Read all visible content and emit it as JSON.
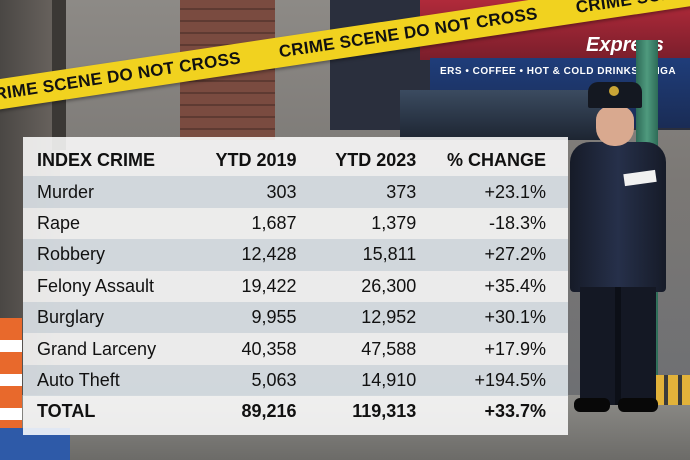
{
  "tape_text": "CRIME SCENE DO NOT CROSS",
  "storefront": {
    "sign_text": "ERS • COFFEE • HOT & COLD DRINKS • CIGA",
    "logo": "Express"
  },
  "table": {
    "headers": [
      "INDEX CRIME",
      "YTD 2019",
      "YTD 2023",
      "% CHANGE"
    ],
    "rows": [
      {
        "crime": "Murder",
        "ytd2019": "303",
        "ytd2023": "373",
        "change": "+23.1%"
      },
      {
        "crime": "Rape",
        "ytd2019": "1,687",
        "ytd2023": "1,379",
        "change": "-18.3%"
      },
      {
        "crime": "Robbery",
        "ytd2019": "12,428",
        "ytd2023": "15,811",
        "change": "+27.2%"
      },
      {
        "crime": "Felony Assault",
        "ytd2019": "19,422",
        "ytd2023": "26,300",
        "change": "+35.4%"
      },
      {
        "crime": "Burglary",
        "ytd2019": "9,955",
        "ytd2023": "12,952",
        "change": "+30.1%"
      },
      {
        "crime": "Grand Larceny",
        "ytd2019": "40,358",
        "ytd2023": "47,588",
        "change": "+17.9%"
      },
      {
        "crime": "Auto Theft",
        "ytd2019": "5,063",
        "ytd2023": "14,910",
        "change": "+194.5%"
      }
    ],
    "total": {
      "crime": "TOTAL",
      "ytd2019": "89,216",
      "ytd2023": "119,313",
      "change": "+33.7%"
    }
  },
  "colors": {
    "tape": "#f1d21f",
    "row_shade": "#a0b2c0",
    "card": "#ffffff"
  }
}
